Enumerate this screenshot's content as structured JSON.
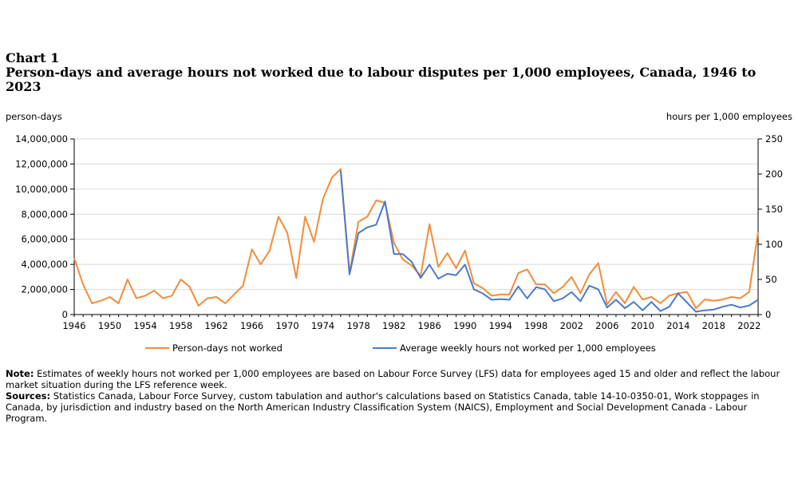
{
  "header": {
    "chart_label": "Chart 1",
    "title": "Person-days and average hours not worked due to labour disputes per 1,000 employees, Canada, 1946 to 2023"
  },
  "notes": {
    "note_label": "Note:",
    "note_text": "Estimates of weekly hours not worked per 1,000 employees are based on Labour Force Survey (LFS) data for employees aged 15 and older and reflect the labour market situation during the LFS reference week.",
    "sources_label": "Sources:",
    "sources_text": "Statistics Canada, Labour Force Survey, custom tabulation and author's calculations based on Statistics Canada, table 14-10-0350-01, Work stoppages in Canada, by jurisdiction and industry based on the North American Industry Classification System (NAICS), Employment and Social Development Canada - Labour Program."
  },
  "colors": {
    "person_days": "#F28C3A",
    "hours": "#4A7AC8",
    "grid": "#d9d9d9",
    "axis": "#000000"
  },
  "chart_data": {
    "type": "line",
    "y_left_label": "person-days",
    "y_right_label": "hours per 1,000 employees",
    "ylim_left": [
      0,
      14000000
    ],
    "ylim_right": [
      0,
      250
    ],
    "y_left_ticks": [
      0,
      2000000,
      4000000,
      6000000,
      8000000,
      10000000,
      12000000,
      14000000
    ],
    "y_left_tick_labels": [
      "0",
      "2,000,000",
      "4,000,000",
      "6,000,000",
      "8,000,000",
      "10,000,000",
      "12,000,000",
      "14,000,000"
    ],
    "y_right_ticks": [
      0,
      50,
      100,
      150,
      200,
      250
    ],
    "y_right_tick_labels": [
      "0",
      "50",
      "100",
      "150",
      "200",
      "250"
    ],
    "xlim": [
      1946,
      2023
    ],
    "x_ticks": [
      1946,
      1950,
      1954,
      1958,
      1962,
      1966,
      1970,
      1974,
      1978,
      1982,
      1986,
      1990,
      1994,
      1998,
      2002,
      2006,
      2010,
      2014,
      2018,
      2022
    ],
    "grid": "horizontal",
    "legend_position": "bottom",
    "series": [
      {
        "name": "Person-days not worked",
        "axis": "left",
        "x": [
          1946,
          1947,
          1948,
          1949,
          1950,
          1951,
          1952,
          1953,
          1954,
          1955,
          1956,
          1957,
          1958,
          1959,
          1960,
          1961,
          1962,
          1963,
          1964,
          1965,
          1966,
          1967,
          1968,
          1969,
          1970,
          1971,
          1972,
          1973,
          1974,
          1975,
          1976,
          1977,
          1978,
          1979,
          1980,
          1981,
          1982,
          1983,
          1984,
          1985,
          1986,
          1987,
          1988,
          1989,
          1990,
          1991,
          1992,
          1993,
          1994,
          1995,
          1996,
          1997,
          1998,
          1999,
          2000,
          2001,
          2002,
          2003,
          2004,
          2005,
          2006,
          2007,
          2008,
          2009,
          2010,
          2011,
          2012,
          2013,
          2014,
          2015,
          2016,
          2017,
          2018,
          2019,
          2020,
          2021,
          2022,
          2023
        ],
        "values": [
          4500000,
          2400000,
          900000,
          1100000,
          1400000,
          900000,
          2800000,
          1300000,
          1500000,
          1900000,
          1300000,
          1500000,
          2800000,
          2200000,
          700000,
          1300000,
          1400000,
          900000,
          1600000,
          2300000,
          5200000,
          4000000,
          5100000,
          7800000,
          6500000,
          2900000,
          7800000,
          5800000,
          9200000,
          10900000,
          11600000,
          3300000,
          7400000,
          7800000,
          9100000,
          8900000,
          5700000,
          4400000,
          3900000,
          3100000,
          7200000,
          3800000,
          4900000,
          3700000,
          5100000,
          2500000,
          2100000,
          1500000,
          1600000,
          1600000,
          3300000,
          3600000,
          2400000,
          2400000,
          1700000,
          2200000,
          3000000,
          1700000,
          3200000,
          4100000,
          800000,
          1800000,
          900000,
          2200000,
          1200000,
          1400000,
          900000,
          1500000,
          1700000,
          1800000,
          500000,
          1200000,
          1100000,
          1200000,
          1400000,
          1300000,
          1800000,
          6600000
        ]
      },
      {
        "name": "Average weekly hours not worked per 1,000 employees",
        "axis": "right",
        "x": [
          1976,
          1977,
          1978,
          1979,
          1980,
          1981,
          1982,
          1983,
          1984,
          1985,
          1986,
          1987,
          1988,
          1989,
          1990,
          1991,
          1992,
          1993,
          1994,
          1995,
          1996,
          1997,
          1998,
          1999,
          2000,
          2001,
          2002,
          2003,
          2004,
          2005,
          2006,
          2007,
          2008,
          2009,
          2010,
          2011,
          2012,
          2013,
          2014,
          2015,
          2016,
          2017,
          2018,
          2019,
          2020,
          2021,
          2022,
          2023
        ],
        "values": [
          205,
          57,
          116,
          124,
          128,
          161,
          86,
          86,
          75,
          52,
          71,
          51,
          58,
          56,
          71,
          36,
          30,
          21,
          22,
          21,
          40,
          23,
          39,
          36,
          19,
          23,
          32,
          19,
          41,
          36,
          10,
          21,
          9,
          18,
          6,
          18,
          5,
          11,
          30,
          17,
          4,
          6,
          7,
          11,
          14,
          10,
          13,
          21
        ]
      }
    ]
  }
}
